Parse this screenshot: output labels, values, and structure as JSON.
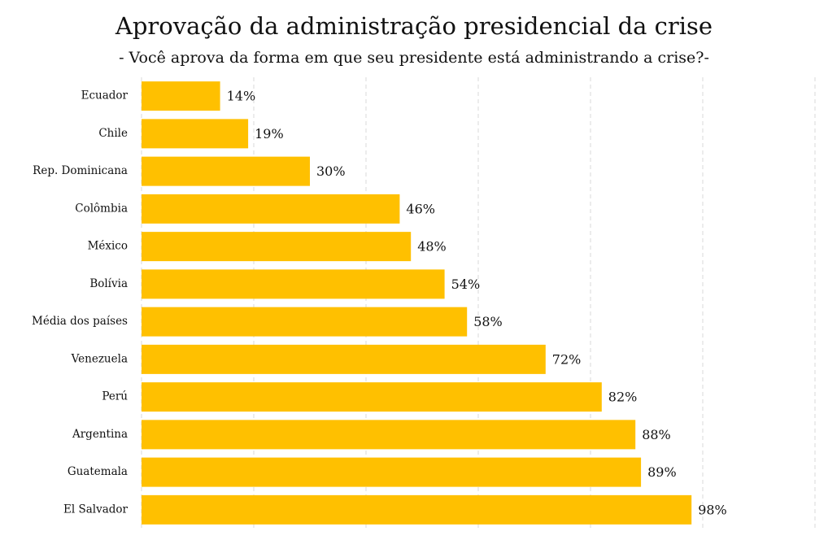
{
  "chart_data": {
    "type": "bar",
    "orientation": "horizontal",
    "title": "Aprovação da administração presidencial da crise",
    "subtitle": "- Você aprova da forma em que seu presidente está administrando a crise?-",
    "categories": [
      "Ecuador",
      "Chile",
      "Rep. Dominicana",
      "Colômbia",
      "México",
      "Bolívia",
      "Média dos países",
      "Venezuela",
      "Perú",
      "Argentina",
      "Guatemala",
      "El Salvador"
    ],
    "values": [
      14,
      19,
      30,
      46,
      48,
      54,
      58,
      72,
      82,
      88,
      89,
      98
    ],
    "value_labels": [
      "14%",
      "19%",
      "30%",
      "46%",
      "48%",
      "54%",
      "58%",
      "72%",
      "82%",
      "88%",
      "89%",
      "98%"
    ],
    "color": "#ffc000",
    "xlim": [
      0,
      120
    ],
    "xticks": [
      0,
      20,
      40,
      60,
      80,
      100,
      120
    ],
    "grid": true
  }
}
